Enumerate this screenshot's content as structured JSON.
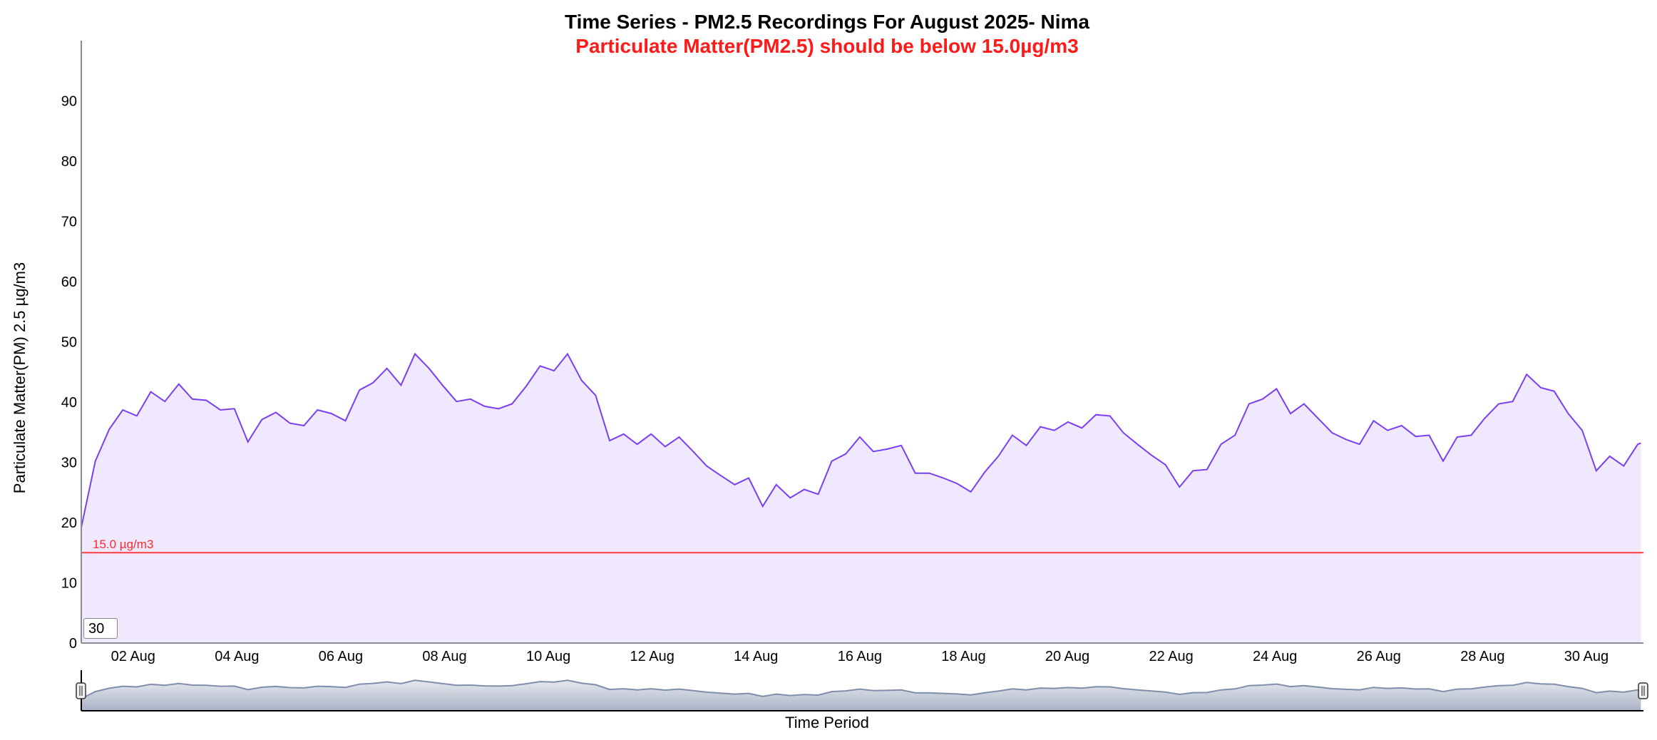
{
  "chart_data": {
    "type": "area",
    "title": "Time Series - PM2.5 Recordings For August 2025- Nima",
    "subtitle": "Particulate Matter(PM2.5) should be below 15.0µg/m3",
    "xlabel": "Time Period",
    "ylabel": "Particulate Matter(PM) 2.5 µg/m3",
    "x_unit": "days since 2025-08-01 00:00",
    "xlim": [
      0,
      30.1
    ],
    "ylim": [
      0,
      100
    ],
    "y_ticks": [
      "0",
      "10",
      "20",
      "30",
      "40",
      "50",
      "60",
      "70",
      "80",
      "90"
    ],
    "x_ticks": [
      {
        "label": "02 Aug",
        "x": 1
      },
      {
        "label": "04 Aug",
        "x": 3
      },
      {
        "label": "06 Aug",
        "x": 5
      },
      {
        "label": "08 Aug",
        "x": 7
      },
      {
        "label": "10 Aug",
        "x": 9
      },
      {
        "label": "12 Aug",
        "x": 11
      },
      {
        "label": "14 Aug",
        "x": 13
      },
      {
        "label": "16 Aug",
        "x": 15
      },
      {
        "label": "18 Aug",
        "x": 17
      },
      {
        "label": "20 Aug",
        "x": 19
      },
      {
        "label": "22 Aug",
        "x": 21
      },
      {
        "label": "24 Aug",
        "x": 23
      },
      {
        "label": "26 Aug",
        "x": 25
      },
      {
        "label": "28 Aug",
        "x": 27
      },
      {
        "label": "30 Aug",
        "x": 29
      }
    ],
    "threshold": {
      "value": 15.0,
      "label": "15.0 µg/m3",
      "color": "#ff3b3b"
    },
    "series": [
      {
        "name": "PM2.5",
        "color": "#7b3ff2",
        "fill": "#f0e8ff",
        "x": [
          0,
          0.27,
          0.54,
          0.8,
          1.07,
          1.34,
          1.61,
          1.88,
          2.14,
          2.41,
          2.68,
          2.95,
          3.21,
          3.48,
          3.75,
          4.02,
          4.29,
          4.55,
          4.82,
          5.09,
          5.36,
          5.62,
          5.89,
          6.16,
          6.43,
          6.7,
          6.96,
          7.23,
          7.5,
          7.77,
          8.04,
          8.3,
          8.57,
          8.84,
          9.11,
          9.37,
          9.64,
          9.91,
          10.18,
          10.45,
          10.71,
          10.98,
          11.25,
          11.52,
          11.79,
          12.05,
          12.32,
          12.59,
          12.86,
          13.13,
          13.39,
          13.66,
          13.93,
          14.2,
          14.46,
          14.73,
          15.0,
          15.26,
          15.53,
          15.8,
          16.07,
          16.34,
          16.61,
          16.87,
          17.14,
          17.41,
          17.67,
          17.94,
          18.21,
          18.48,
          18.75,
          19.01,
          19.28,
          19.55,
          19.82,
          20.08,
          20.35,
          20.62,
          20.89,
          21.16,
          21.42,
          21.69,
          21.96,
          22.23,
          22.5,
          22.76,
          23.03,
          23.3,
          23.56,
          23.83,
          24.1,
          24.37,
          24.63,
          24.9,
          25.17,
          25.44,
          25.71,
          25.97,
          26.24,
          26.51,
          26.78,
          27.04,
          27.31,
          27.58,
          27.85,
          28.12,
          28.38,
          28.65,
          28.92,
          29.19,
          29.45,
          29.72,
          29.99,
          30.05
        ],
        "y": [
          19.2,
          30.2,
          35.5,
          38.7,
          37.7,
          41.7,
          40.1,
          43.0,
          40.5,
          40.3,
          38.7,
          38.9,
          33.4,
          37.1,
          38.3,
          36.5,
          36.1,
          38.7,
          38.1,
          36.9,
          42.0,
          43.2,
          45.6,
          42.8,
          48.0,
          45.6,
          42.8,
          40.1,
          40.5,
          39.3,
          38.9,
          39.7,
          42.6,
          46.0,
          45.2,
          48.0,
          43.6,
          41.1,
          33.6,
          34.7,
          33.0,
          34.7,
          32.6,
          34.2,
          31.8,
          29.4,
          27.8,
          26.3,
          27.4,
          22.7,
          26.3,
          24.1,
          25.5,
          24.7,
          30.2,
          31.4,
          34.2,
          31.8,
          32.2,
          32.8,
          28.2,
          28.2,
          27.4,
          26.5,
          25.1,
          28.4,
          31.0,
          34.5,
          32.8,
          35.9,
          35.3,
          36.7,
          35.7,
          37.9,
          37.7,
          34.9,
          33.0,
          31.2,
          29.6,
          25.9,
          28.6,
          28.8,
          33.0,
          34.5,
          39.7,
          40.5,
          42.2,
          38.1,
          39.7,
          37.3,
          34.9,
          33.8,
          33.0,
          36.9,
          35.3,
          36.1,
          34.3,
          34.5,
          30.2,
          34.2,
          34.5,
          37.3,
          39.7,
          40.1,
          44.6,
          42.4,
          41.8,
          38.1,
          35.3,
          28.6,
          31.0,
          29.4,
          33.0,
          33.2
        ]
      }
    ],
    "grid": false,
    "legend": "none",
    "navigator": true
  },
  "controls": {
    "zoom_input_value": "30"
  }
}
